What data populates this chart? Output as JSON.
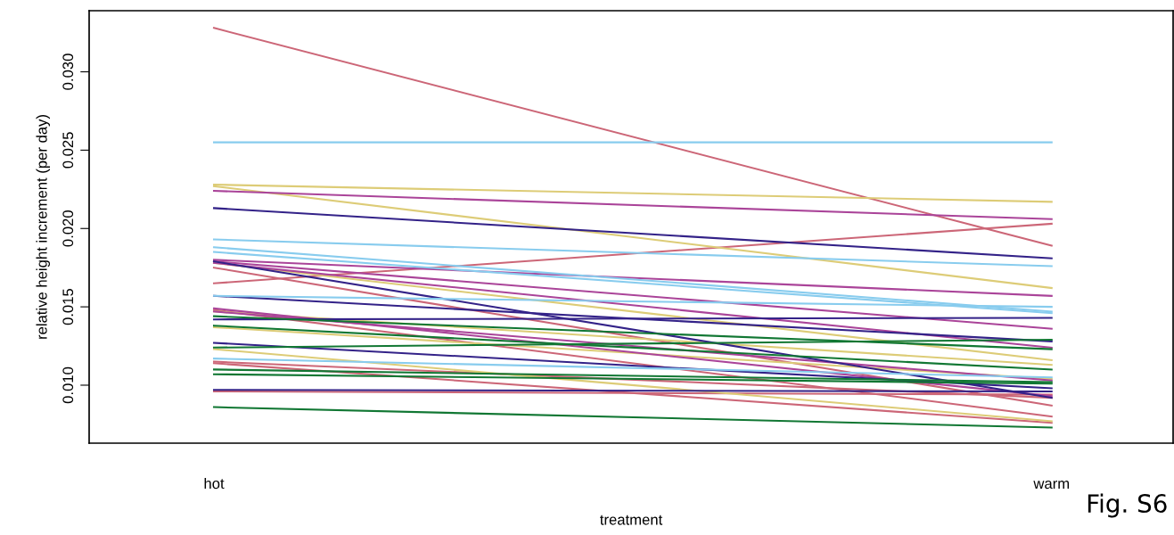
{
  "chart_data": {
    "type": "line",
    "xlabel": "treatment",
    "ylabel": "relative height increment (per day)",
    "categories": [
      "hot",
      "warm"
    ],
    "ylim": [
      0.0063,
      0.0339
    ],
    "yticks": [
      {
        "value": 0.01,
        "label": "0.010"
      },
      {
        "value": 0.015,
        "label": "0.015"
      },
      {
        "value": 0.02,
        "label": "0.020"
      },
      {
        "value": 0.025,
        "label": "0.025"
      },
      {
        "value": 0.03,
        "label": "0.030"
      }
    ],
    "grid": false,
    "legend": false,
    "marker": "none",
    "line_style": "solid",
    "annotations": [
      "Fig. S6"
    ],
    "series": [
      {
        "color": "#cc6677",
        "values": [
          0.0328,
          0.0189
        ]
      },
      {
        "color": "#cc6677",
        "values": [
          0.0165,
          0.0203
        ]
      },
      {
        "color": "#cc6677",
        "values": [
          0.0175,
          0.0087
        ]
      },
      {
        "color": "#cc6677",
        "values": [
          0.0148,
          0.008
        ]
      },
      {
        "color": "#cc6677",
        "values": [
          0.0115,
          0.0092
        ]
      },
      {
        "color": "#cc6677",
        "values": [
          0.0114,
          0.0076
        ]
      },
      {
        "color": "#cc6677",
        "values": [
          0.0096,
          0.0094
        ]
      },
      {
        "color": "#ddcc77",
        "values": [
          0.0228,
          0.0217
        ]
      },
      {
        "color": "#ddcc77",
        "values": [
          0.0227,
          0.0162
        ]
      },
      {
        "color": "#ddcc77",
        "values": [
          0.0178,
          0.0116
        ]
      },
      {
        "color": "#ddcc77",
        "values": [
          0.0147,
          0.0113
        ]
      },
      {
        "color": "#ddcc77",
        "values": [
          0.0137,
          0.0104
        ]
      },
      {
        "color": "#ddcc77",
        "values": [
          0.0123,
          0.0077
        ]
      },
      {
        "color": "#aa4499",
        "values": [
          0.0224,
          0.0206
        ]
      },
      {
        "color": "#aa4499",
        "values": [
          0.018,
          0.0157
        ]
      },
      {
        "color": "#aa4499",
        "values": [
          0.0179,
          0.0136
        ]
      },
      {
        "color": "#aa4499",
        "values": [
          0.0178,
          0.0124
        ]
      },
      {
        "color": "#aa4499",
        "values": [
          0.0149,
          0.0093
        ]
      },
      {
        "color": "#aa4499",
        "values": [
          0.0147,
          0.0103
        ]
      },
      {
        "color": "#332288",
        "values": [
          0.0213,
          0.0181
        ]
      },
      {
        "color": "#332288",
        "values": [
          0.0179,
          0.0092
        ]
      },
      {
        "color": "#332288",
        "values": [
          0.0157,
          0.0128
        ]
      },
      {
        "color": "#332288",
        "values": [
          0.0142,
          0.0143
        ]
      },
      {
        "color": "#332288",
        "values": [
          0.0127,
          0.0098
        ]
      },
      {
        "color": "#332288",
        "values": [
          0.0097,
          0.0096
        ]
      },
      {
        "color": "#88ccee",
        "values": [
          0.0255,
          0.0255
        ]
      },
      {
        "color": "#88ccee",
        "values": [
          0.0193,
          0.0176
        ]
      },
      {
        "color": "#88ccee",
        "values": [
          0.0188,
          0.0147
        ]
      },
      {
        "color": "#88ccee",
        "values": [
          0.0185,
          0.0146
        ]
      },
      {
        "color": "#88ccee",
        "values": [
          0.0157,
          0.015
        ]
      },
      {
        "color": "#88ccee",
        "values": [
          0.0117,
          0.0105
        ]
      },
      {
        "color": "#117733",
        "values": [
          0.0144,
          0.0123
        ]
      },
      {
        "color": "#117733",
        "values": [
          0.0138,
          0.011
        ]
      },
      {
        "color": "#117733",
        "values": [
          0.0124,
          0.0129
        ]
      },
      {
        "color": "#117733",
        "values": [
          0.011,
          0.0102
        ]
      },
      {
        "color": "#117733",
        "values": [
          0.0107,
          0.0101
        ]
      },
      {
        "color": "#117733",
        "values": [
          0.0086,
          0.0073
        ]
      }
    ]
  }
}
